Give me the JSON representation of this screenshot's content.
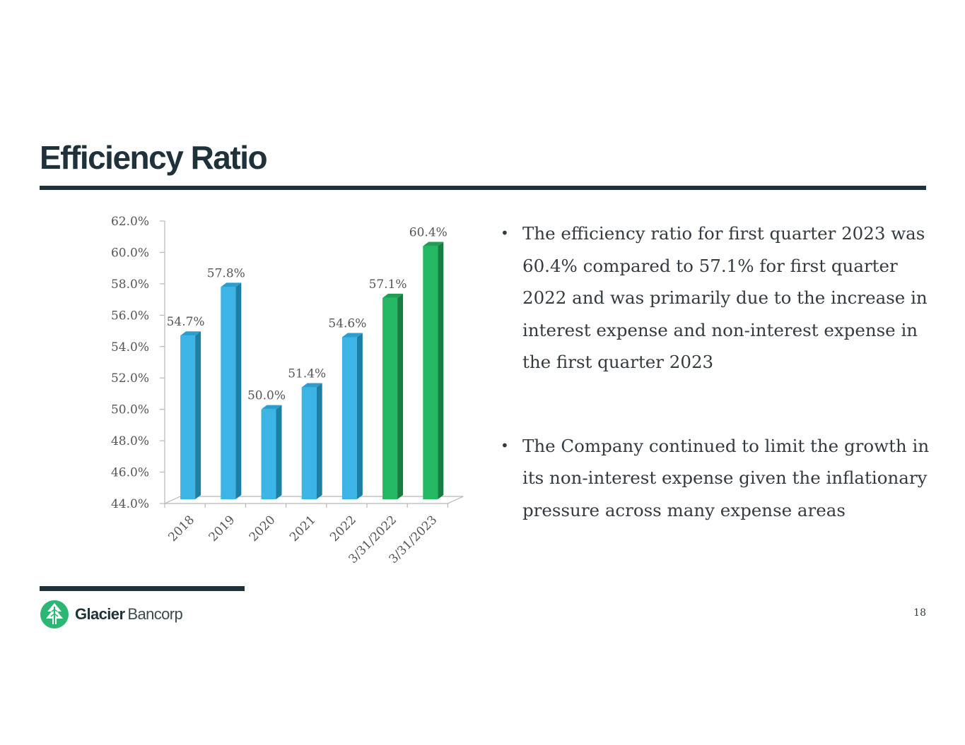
{
  "slide": {
    "title": "Efficiency Ratio",
    "page_number": "18"
  },
  "logo": {
    "name_strong": "Glacier",
    "name_light": "Bancorp",
    "icon": "evergreen-tree-icon"
  },
  "bullets": [
    {
      "text": "The efficiency ratio for first quarter  2023 was 60.4% compared to 57.1% for first quarter 2022 and was primarily due to the increase in interest expense and non-interest expense in the first quarter 2023"
    },
    {
      "text": "The Company continued to limit the growth in its non-interest expense given the inflationary pressure across many expense areas"
    }
  ],
  "colors": {
    "title": "#1f323b",
    "blue_front": "#3cb4e6",
    "blue_side": "#1e7fa6",
    "blue_top": "#2a9fcf",
    "green_front": "#25b864",
    "green_side": "#187d43",
    "green_top": "#1f9e53",
    "axis_text": "#555555",
    "logo_green": "#2bb673"
  },
  "chart_data": {
    "type": "bar",
    "title": "",
    "categories": [
      "2018",
      "2019",
      "2020",
      "2021",
      "2022",
      "3/31/2022",
      "3/31/2023"
    ],
    "values": [
      54.7,
      57.8,
      50.0,
      51.4,
      54.6,
      57.1,
      60.4
    ],
    "data_labels": [
      "54.7%",
      "57.8%",
      "50.0%",
      "51.4%",
      "54.6%",
      "57.1%",
      "60.4%"
    ],
    "bar_colors": [
      "blue",
      "blue",
      "blue",
      "blue",
      "blue",
      "green",
      "green"
    ],
    "ylim": [
      44.0,
      62.0
    ],
    "y_ticks": [
      44.0,
      46.0,
      48.0,
      50.0,
      52.0,
      54.0,
      56.0,
      58.0,
      60.0,
      62.0
    ],
    "y_tick_labels": [
      "44.0%",
      "46.0%",
      "48.0%",
      "50.0%",
      "52.0%",
      "54.0%",
      "56.0%",
      "58.0%",
      "60.0%",
      "62.0%"
    ],
    "xlabel": "",
    "ylabel": "",
    "grid": false
  }
}
